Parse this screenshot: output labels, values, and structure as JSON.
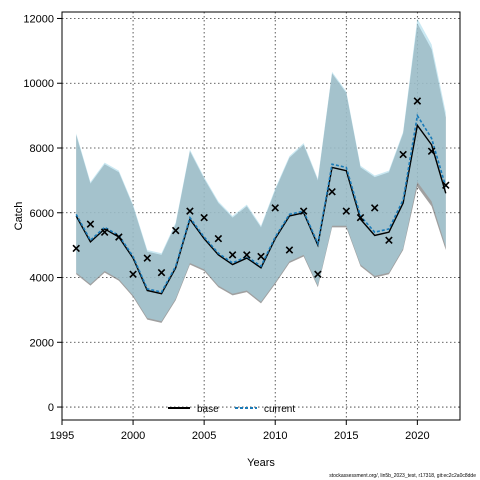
{
  "chart_data": {
    "type": "line",
    "xlabel": "Years",
    "ylabel": "Catch",
    "xlim": [
      1995,
      2023
    ],
    "ylim": [
      -400,
      12200
    ],
    "xticks": [
      1995,
      2000,
      2005,
      2010,
      2015,
      2020
    ],
    "yticks": [
      0,
      2000,
      4000,
      6000,
      8000,
      10000,
      12000
    ],
    "grid": true,
    "legend_position": "bottom-center",
    "x": [
      1996,
      1997,
      1998,
      1999,
      2000,
      2001,
      2002,
      2003,
      2004,
      2005,
      2006,
      2007,
      2008,
      2009,
      2010,
      2011,
      2012,
      2013,
      2014,
      2015,
      2016,
      2017,
      2018,
      2019,
      2020,
      2021,
      2022
    ],
    "series": [
      {
        "name": "base",
        "color": "#000000",
        "linestyle": "solid",
        "band_color": "#808080",
        "values": [
          5900,
          5100,
          5500,
          5250,
          4600,
          3600,
          3500,
          4300,
          5800,
          5200,
          4700,
          4400,
          4600,
          4300,
          5200,
          5900,
          6000,
          5000,
          7400,
          7300,
          5800,
          5300,
          5400,
          6300,
          8700,
          8100,
          6600
        ],
        "lower": [
          4100,
          3750,
          4150,
          3900,
          3400,
          2700,
          2600,
          3300,
          4400,
          4200,
          3700,
          3450,
          3550,
          3200,
          3800,
          4450,
          4650,
          3700,
          5550,
          5550,
          4350,
          4000,
          4100,
          4850,
          6800,
          6200,
          4850
        ],
        "upper": [
          8400,
          6900,
          7500,
          7250,
          6200,
          4800,
          4700,
          5650,
          7900,
          7050,
          6300,
          5850,
          6200,
          5550,
          6700,
          7700,
          8100,
          7000,
          10300,
          9700,
          7400,
          7100,
          7250,
          8450,
          11850,
          11050,
          8950
        ]
      },
      {
        "name": "current",
        "color": "#1a7bb9",
        "linestyle": "dashed",
        "band_color": "#a6d8ea",
        "values": [
          5950,
          5150,
          5550,
          5300,
          4650,
          3650,
          3550,
          4350,
          5850,
          5250,
          4750,
          4450,
          4650,
          4350,
          5250,
          5950,
          6050,
          5050,
          7500,
          7400,
          5900,
          5400,
          5500,
          6400,
          9000,
          8300,
          6800
        ],
        "lower": [
          4150,
          3800,
          4200,
          3950,
          3450,
          2750,
          2650,
          3350,
          4450,
          4250,
          3750,
          3500,
          3600,
          3250,
          3850,
          4500,
          4700,
          3750,
          5600,
          5600,
          4400,
          4050,
          4150,
          4900,
          6950,
          6350,
          4950
        ],
        "upper": [
          8450,
          6950,
          7550,
          7300,
          6250,
          4850,
          4750,
          5700,
          7950,
          7100,
          6350,
          5900,
          6250,
          5600,
          6750,
          7750,
          8150,
          7050,
          10350,
          9750,
          7450,
          7150,
          7300,
          8500,
          12000,
          11200,
          9100
        ]
      }
    ],
    "observed": {
      "marker": "x",
      "x": [
        1996,
        1997,
        1998,
        1999,
        2000,
        2001,
        2002,
        2003,
        2004,
        2005,
        2006,
        2007,
        2008,
        2009,
        2010,
        2011,
        2012,
        2013,
        2014,
        2015,
        2016,
        2017,
        2018,
        2019,
        2020,
        2021,
        2022
      ],
      "values": [
        4900,
        5650,
        5400,
        5250,
        4100,
        4600,
        4150,
        5450,
        6050,
        5850,
        5200,
        4700,
        4700,
        4650,
        6150,
        4850,
        6050,
        4100,
        6650,
        6050,
        5850,
        6150,
        5150,
        7800,
        9450,
        7900,
        6850
      ]
    }
  },
  "footer": "stockassessment.org/, lin5b_2023_test, r17318, git:ec2c2a0c8dde"
}
